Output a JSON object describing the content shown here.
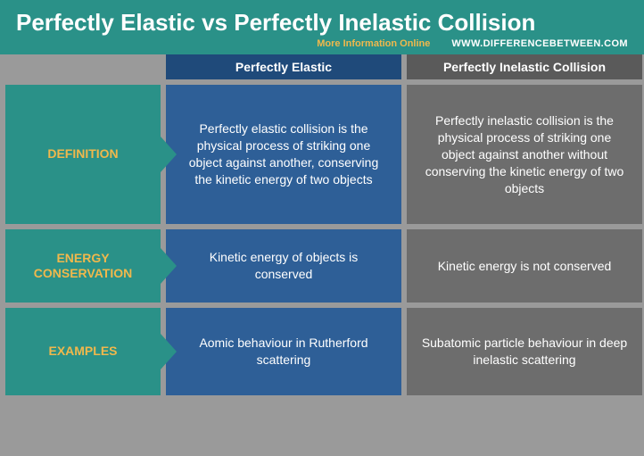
{
  "header": {
    "title": "Perfectly Elastic vs Perfectly Inelastic Collision",
    "more_info": "More Information Online",
    "site": "WWW.DIFFERENCEBETWEEN.COM"
  },
  "columns": {
    "left_header": "Perfectly Elastic",
    "right_header": "Perfectly Inelastic Collision"
  },
  "rows": [
    {
      "label": "DEFINITION",
      "left": "Perfectly elastic collision is the physical process of striking one object against another, conserving the kinetic energy of two objects",
      "right": "Perfectly inelastic collision is the physical process of striking one object against another without conserving the kinetic energy of two objects"
    },
    {
      "label": "ENERGY CONSERVATION",
      "left": "Kinetic energy of objects is conserved",
      "right": "Kinetic energy is not conserved"
    },
    {
      "label": "EXAMPLES",
      "left": "Aomic behaviour in Rutherford scattering",
      "right": "Subatomic particle behaviour in deep inelastic scattering"
    }
  ],
  "colors": {
    "teal": "#2a9188",
    "accent": "#f0b84c",
    "blue_dark": "#1f4a7a",
    "blue_cell": "#2e5f97",
    "gray_dark": "#5a5a5a",
    "gray_cell": "#6d6d6d",
    "bg": "#9a9a9a"
  }
}
